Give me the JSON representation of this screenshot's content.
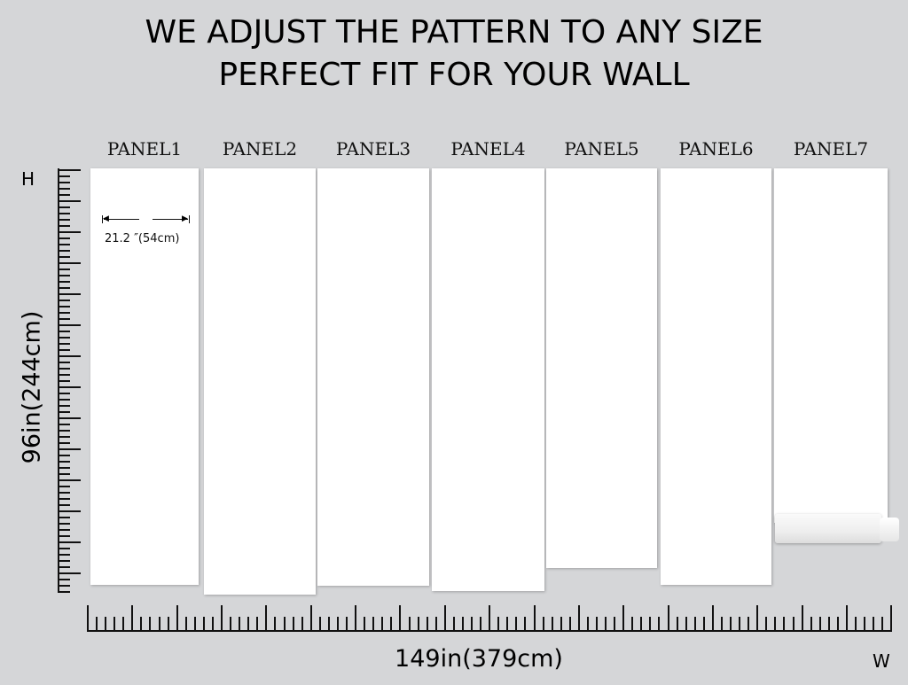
{
  "heading": {
    "line1": "WE ADJUST THE PATTERN TO ANY SIZE",
    "line2": "PERFECT FIT FOR YOUR WALL"
  },
  "panels": [
    {
      "label": "PANEL1"
    },
    {
      "label": "PANEL2"
    },
    {
      "label": "PANEL3"
    },
    {
      "label": "PANEL4"
    },
    {
      "label": "PANEL5"
    },
    {
      "label": "PANEL6"
    },
    {
      "label": "PANEL7"
    }
  ],
  "panel_width": "21.2  ″(54cm)",
  "height_axis": {
    "letter": "H",
    "label": "96in(244cm)"
  },
  "width_axis": {
    "letter": "W",
    "label": "149in(379cm)"
  }
}
